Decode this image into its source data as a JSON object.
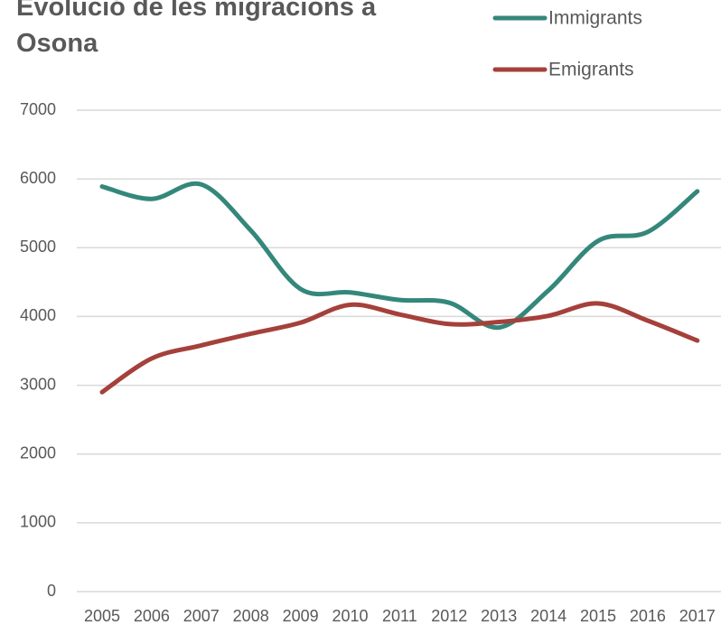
{
  "chart_data": {
    "type": "line",
    "title": "Evolució de les migracions a Osona",
    "categories": [
      "2005",
      "2006",
      "2007",
      "2008",
      "2009",
      "2010",
      "2011",
      "2012",
      "2013",
      "2014",
      "2015",
      "2016",
      "2017"
    ],
    "series": [
      {
        "name": "Immigrants",
        "color": "#34877b",
        "values": [
          5890,
          5710,
          5920,
          5250,
          4400,
          4350,
          4240,
          4200,
          3840,
          4380,
          5100,
          5230,
          5820
        ]
      },
      {
        "name": "Emigrants",
        "color": "#a5403b",
        "values": [
          2900,
          3390,
          3580,
          3750,
          3910,
          4170,
          4030,
          3890,
          3920,
          4010,
          4190,
          3940,
          3650
        ]
      }
    ],
    "ylim": [
      0,
      7000
    ],
    "yticks": [
      0,
      1000,
      2000,
      3000,
      4000,
      5000,
      6000,
      7000
    ],
    "grid": true,
    "legend": "top-right"
  }
}
